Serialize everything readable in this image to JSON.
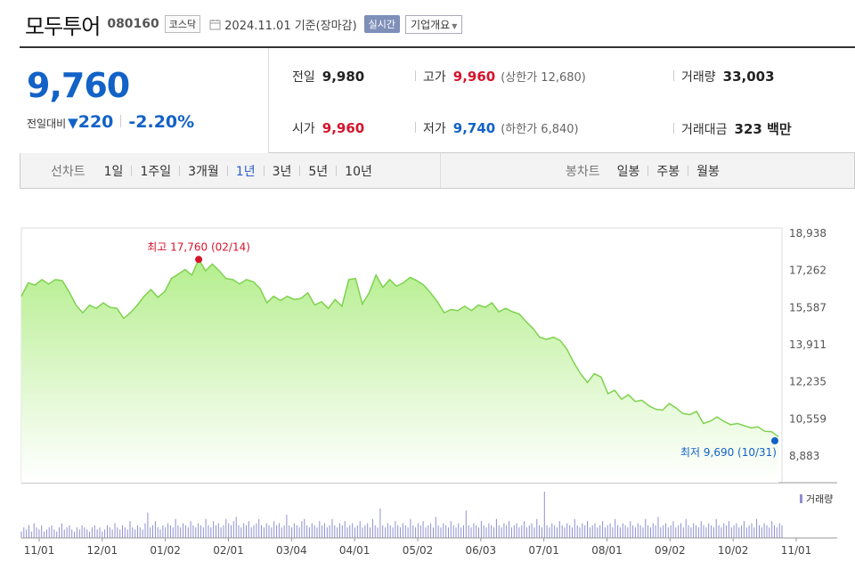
{
  "header": {
    "name": "모두투어",
    "code": "080160",
    "market": "코스닥",
    "date": "2024.11.01  기준(장마감)",
    "realtime_label": "실시간",
    "company_label": "기업개요"
  },
  "price": {
    "current": "9,760",
    "change_label": "전일대비",
    "change": "220",
    "change_pct": "-2.20%"
  },
  "stats": {
    "prev_label": "전일",
    "prev": "9,980",
    "high_label": "고가",
    "high": "9,960",
    "upper_limit": "(상한가 12,680)",
    "volume_label": "거래량",
    "volume": "33,003",
    "open_label": "시가",
    "open": "9,960",
    "low_label": "저가",
    "low": "9,740",
    "lower_limit": "(하한가 6,840)",
    "amount_label": "거래대금",
    "amount": "323 백만"
  },
  "tabs": {
    "line_label": "선차트",
    "periods": [
      "1일",
      "1주일",
      "3개월",
      "1년",
      "3년",
      "5년",
      "10년"
    ],
    "active_period": "1년",
    "candle_label": "봉차트",
    "candles": [
      "일봉",
      "주봉",
      "월봉"
    ]
  },
  "colors": {
    "up": "#d6142c",
    "down": "#1262c7",
    "line": "#7ed24e",
    "fill_top": "#b4ee8c",
    "volume": "#8f8fd2"
  },
  "chart_data": {
    "type": "area",
    "x_labels": [
      "11/01",
      "12/01",
      "01/02",
      "02/01",
      "03/04",
      "04/01",
      "05/02",
      "06/03",
      "07/01",
      "08/01",
      "09/02",
      "10/02",
      "11/01"
    ],
    "y_ticks": [
      "18,938",
      "17,262",
      "15,587",
      "13,911",
      "12,235",
      "10,559",
      "8,883"
    ],
    "ylim": [
      8883,
      18938
    ],
    "series": [
      {
        "values": [
          16100,
          16700,
          16600,
          16850,
          16650,
          16850,
          16800,
          16300,
          15700,
          15350,
          15700,
          15550,
          15800,
          15600,
          15550,
          15100,
          15350,
          15700,
          16100,
          16400,
          16050,
          16300,
          16900,
          17100,
          17300,
          17050,
          17760,
          17250,
          17550,
          17250,
          16900,
          16850,
          16650,
          16850,
          16750,
          16450,
          15800,
          16100,
          15900,
          16100,
          15950,
          16000,
          16250,
          15700,
          15850,
          15550,
          15950,
          15650,
          16850,
          16900,
          15750,
          16250,
          17050,
          16500,
          16850,
          16550,
          16700,
          16950,
          16800,
          16600,
          16250,
          15850,
          15350,
          15500,
          15450,
          15650,
          15450,
          15700,
          15600,
          15800,
          15400,
          15550,
          15400,
          15300,
          14950,
          14650,
          14250,
          14150,
          14250,
          14100,
          13700,
          13100,
          12600,
          12200,
          12600,
          12450,
          11700,
          11850,
          11450,
          11650,
          11350,
          11400,
          11150,
          11000,
          10950,
          11250,
          11050,
          10800,
          10750,
          10900,
          10350,
          10450,
          10650,
          10450,
          10300,
          10350,
          10250,
          10150,
          10200,
          10000,
          9980,
          9760
        ]
      }
    ],
    "annotations": {
      "max": {
        "label": "최고 17,760 (02/14)",
        "value": 17760
      },
      "min": {
        "label": "최저 9,690 (10/31)",
        "value": 9690
      }
    },
    "volume_label": "거래량",
    "volume": [
      3,
      5,
      4,
      6,
      3,
      7,
      5,
      4,
      6,
      3,
      4,
      5,
      6,
      4,
      3,
      5,
      7,
      4,
      5,
      6,
      4,
      3,
      5,
      4,
      6,
      5,
      4,
      3,
      5,
      6,
      4,
      5,
      3,
      4,
      6,
      5,
      4,
      7,
      5,
      4,
      6,
      5,
      4,
      8,
      5,
      4,
      6,
      5,
      4,
      7,
      12,
      5,
      6,
      8,
      5,
      4,
      6,
      5,
      7,
      6,
      5,
      9,
      6,
      5,
      7,
      6,
      5,
      8,
      6,
      5,
      7,
      6,
      5,
      9,
      6,
      5,
      8,
      6,
      7,
      5,
      6,
      9,
      7,
      6,
      8,
      10,
      6,
      5,
      7,
      6,
      8,
      5,
      6,
      7,
      9,
      6,
      5,
      7,
      6,
      5,
      8,
      6,
      7,
      5,
      6,
      11,
      6,
      5,
      7,
      6,
      5,
      8,
      9,
      6,
      5,
      7,
      6,
      5,
      8,
      6,
      7,
      5,
      6,
      9,
      6,
      5,
      7,
      6,
      8,
      5,
      6,
      7,
      5,
      6,
      8,
      5,
      6,
      7,
      5,
      9,
      6,
      5,
      14,
      6,
      5,
      7,
      6,
      5,
      8,
      6,
      5,
      7,
      6,
      5,
      9,
      6,
      5,
      7,
      6,
      8,
      5,
      6,
      7,
      5,
      10,
      6,
      5,
      7,
      6,
      5,
      8,
      6,
      5,
      7,
      5,
      6,
      13,
      6,
      5,
      7,
      6,
      5,
      8,
      6,
      5,
      7,
      6,
      5,
      9,
      6,
      5,
      7,
      6,
      8,
      5,
      6,
      7,
      5,
      6,
      8,
      5,
      6,
      7,
      5,
      9,
      6,
      5,
      22,
      6,
      5,
      7,
      6,
      5,
      8,
      6,
      5,
      7,
      6,
      5,
      9,
      6,
      5,
      7,
      6,
      8,
      5,
      6,
      7,
      5,
      6,
      8,
      5,
      6,
      7,
      5,
      9,
      6,
      5,
      7,
      6,
      5,
      8,
      6,
      5,
      7,
      6,
      5,
      9,
      6,
      5,
      7,
      6,
      10,
      5,
      6,
      7,
      5,
      6,
      8,
      5,
      6,
      7,
      5,
      9,
      6,
      5,
      7,
      6,
      5,
      8,
      6,
      5,
      7,
      6,
      5,
      9,
      6,
      5,
      7,
      6,
      8,
      5,
      6,
      7,
      5,
      6,
      8,
      5,
      6,
      7,
      5,
      9,
      6,
      5,
      7,
      6,
      5,
      8,
      6,
      5,
      7,
      6
    ]
  }
}
